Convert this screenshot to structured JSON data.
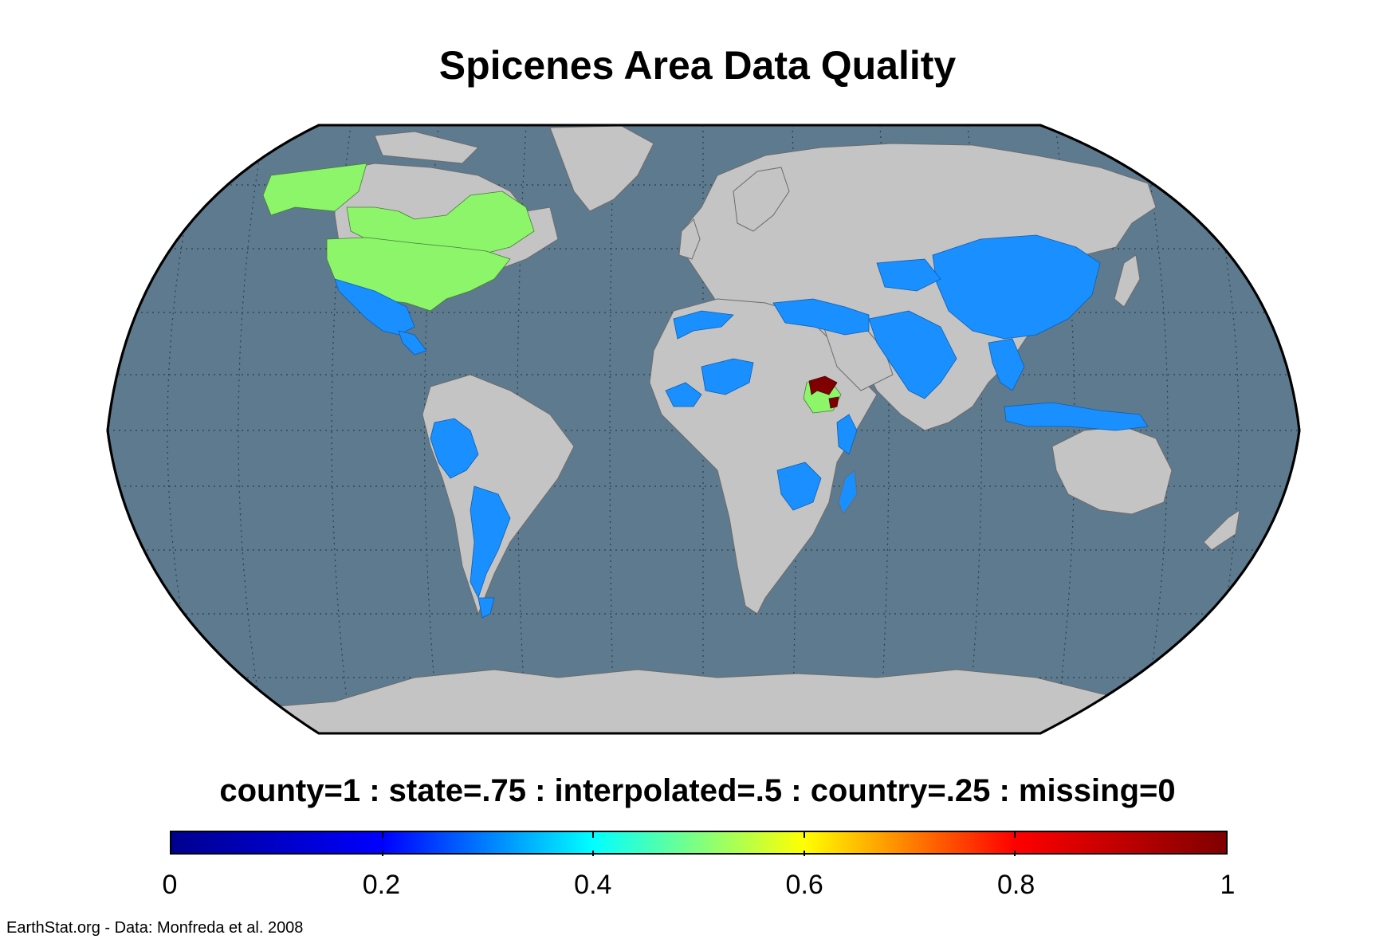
{
  "title": "Spicenes Area Data Quality",
  "legend_caption": "county=1 : state=.75 : interpolated=.5 : country=.25 : missing=0",
  "credit": "EarthStat.org - Data: Monfreda et al. 2008",
  "colorbar": {
    "min": 0,
    "max": 1,
    "tick_labels": [
      "0",
      "0.2",
      "0.4",
      "0.6",
      "0.8",
      "1"
    ],
    "tick_values": [
      0,
      0.2,
      0.4,
      0.6,
      0.8,
      1
    ],
    "colormap": "jet",
    "stops": [
      "#00008f",
      "#0000ff",
      "#00ffff",
      "#ffff00",
      "#ff0000",
      "#800000"
    ]
  },
  "colors": {
    "ocean": "#5e7a8e",
    "land_missing": "#c4c4c4",
    "country_level": "#1a8fff",
    "interpolated_level": "#8cf56a",
    "county_level": "#800000"
  },
  "map": {
    "projection": "Robinson",
    "graticule": "dotted"
  }
}
